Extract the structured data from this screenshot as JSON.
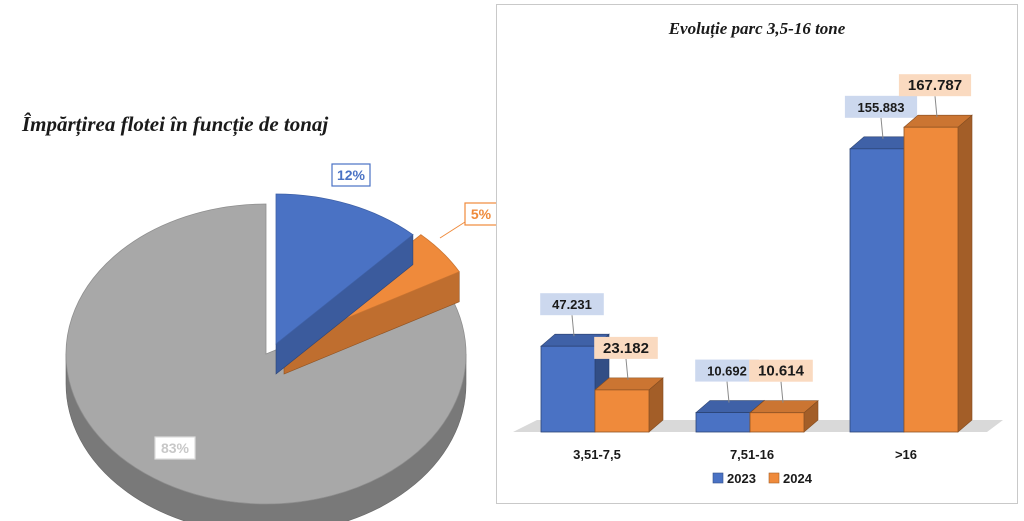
{
  "colors": {
    "blue": "#4a72c4",
    "orange": "#ef8a3b",
    "gray": "#a8a8a8"
  },
  "chart_data": [
    {
      "type": "pie",
      "title": "Împărțirea flotei în funcție de tonaj",
      "slices": [
        {
          "label": "12%",
          "value": 12,
          "color": "#4a72c4"
        },
        {
          "label": "5%",
          "value": 5,
          "color": "#ef8a3b"
        },
        {
          "label": "83%",
          "value": 83,
          "color": "#a8a8a8"
        }
      ]
    },
    {
      "type": "bar",
      "title": "Evoluție parc 3,5-16 tone",
      "categories": [
        "3,51-7,5",
        "7,51-16",
        ">16"
      ],
      "series": [
        {
          "name": "2023",
          "color": "#4a72c4",
          "values": [
            47231,
            10692,
            155883
          ],
          "labels": [
            "47.231",
            "10.692",
            "155.883"
          ]
        },
        {
          "name": "2024",
          "color": "#ef8a3b",
          "values": [
            23182,
            10614,
            167787
          ],
          "labels": [
            "23.182",
            "10.614",
            "167.787"
          ]
        }
      ],
      "ylim": [
        0,
        180000
      ],
      "legend_position": "bottom"
    }
  ]
}
